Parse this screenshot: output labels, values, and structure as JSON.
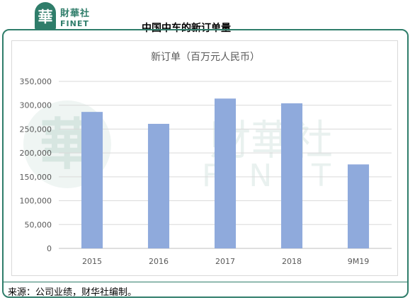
{
  "header": {
    "logo_glyph": "華",
    "brand_cn": "財華社",
    "brand_en": "FINET",
    "title": "中国中车的新订单量"
  },
  "watermark": {
    "cn": "財華社",
    "en": "FINET",
    "glyph": "華"
  },
  "footer": {
    "source": "来源：公司业绩，财华社编制。"
  },
  "colors": {
    "bar": "#8faadc",
    "brand": "#2f7d6a",
    "grid": "#d9d9d9"
  },
  "chart_data": {
    "type": "bar",
    "title": "新订单（百万元人民币）",
    "categories": [
      "2015",
      "2016",
      "2017",
      "2018",
      "9M19"
    ],
    "values": [
      286000,
      261000,
      314000,
      304000,
      176000
    ],
    "ylim": [
      0,
      350000
    ],
    "yticks": [
      "0",
      "50,000",
      "100,000",
      "150,000",
      "200,000",
      "250,000",
      "300,000",
      "350,000"
    ],
    "grid": true,
    "legend": "none"
  }
}
